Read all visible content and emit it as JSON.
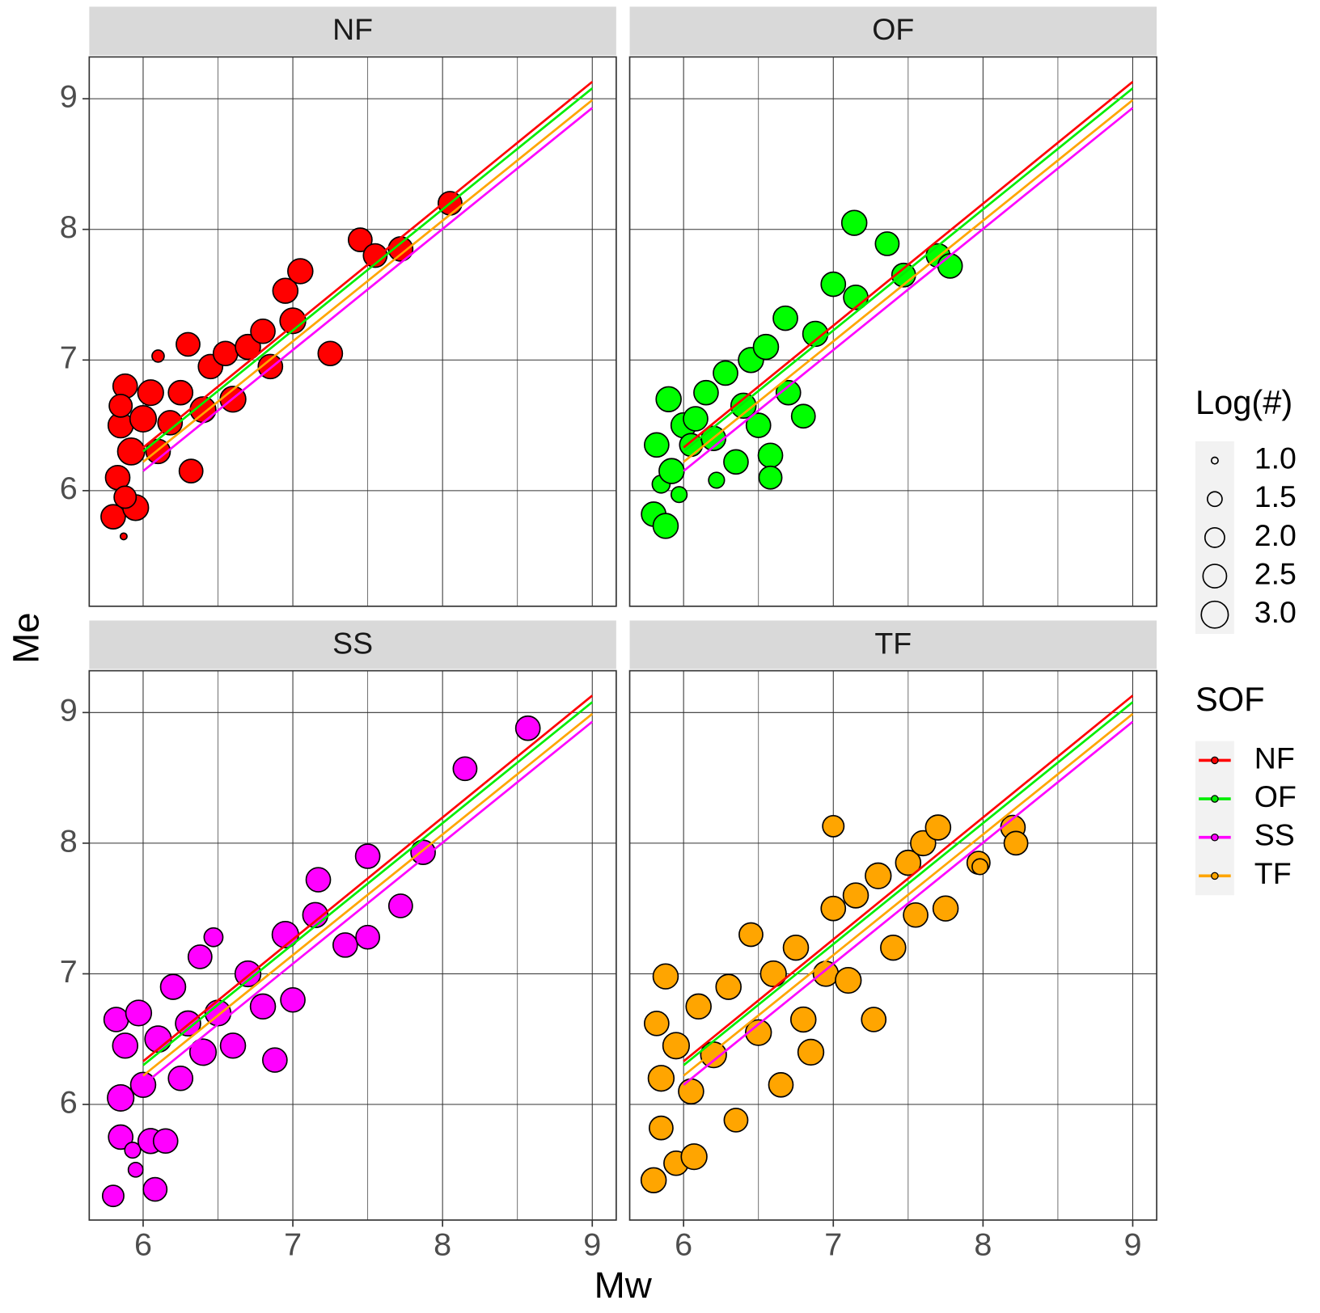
{
  "chart_data": {
    "type": "scatter",
    "xlabel": "Mw",
    "ylabel": "Me",
    "xlim": [
      5.64,
      9.16
    ],
    "ylim": [
      5.115,
      9.32
    ],
    "xticks": [
      6,
      7,
      8,
      9
    ],
    "yticks": [
      6,
      7,
      8,
      9
    ],
    "x_minor_grid": [
      6.5,
      7.5,
      8.5
    ],
    "grid": true,
    "legend_position": "right",
    "size_legend": {
      "title": "Log(#)",
      "values": [
        {
          "value": 1,
          "label": "1.0"
        },
        {
          "value": 1.5,
          "label": "1.5"
        },
        {
          "value": 2,
          "label": "2.0"
        },
        {
          "value": 2.5,
          "label": "2.5"
        },
        {
          "value": 3,
          "label": "3.0"
        }
      ]
    },
    "legend_title": "SOF",
    "lines": [
      {
        "name": "NF",
        "color": "#ff0000",
        "x": [
          6,
          9
        ],
        "y": [
          6.33,
          9.13
        ]
      },
      {
        "name": "OF",
        "color": "#00ee00",
        "x": [
          6,
          9
        ],
        "y": [
          6.3,
          9.08
        ]
      },
      {
        "name": "SS",
        "color": "#ff00ff",
        "x": [
          6,
          9
        ],
        "y": [
          6.15,
          8.93
        ]
      },
      {
        "name": "TF",
        "color": "#ffa500",
        "x": [
          6,
          9
        ],
        "y": [
          6.22,
          8.99
        ]
      }
    ],
    "facets": [
      {
        "title": "NF",
        "color": "#ff0000",
        "x": [
          5.8,
          5.83,
          5.85,
          5.88,
          5.92,
          5.95,
          5.88,
          5.85,
          6.0,
          6.05,
          6.1,
          6.18,
          6.25,
          6.3,
          6.32,
          6.4,
          6.45,
          6.55,
          6.6,
          6.7,
          6.8,
          6.85,
          6.95,
          7.0,
          7.05,
          7.25,
          7.45,
          7.72,
          8.05,
          6.1,
          5.87,
          7.55
        ],
        "y": [
          5.8,
          6.1,
          6.5,
          6.8,
          6.3,
          5.87,
          5.95,
          6.65,
          6.55,
          6.75,
          6.3,
          6.52,
          6.75,
          7.12,
          6.15,
          6.62,
          6.95,
          7.05,
          6.7,
          7.1,
          7.22,
          6.95,
          7.53,
          7.3,
          7.68,
          7.05,
          7.92,
          7.85,
          8.2,
          7.03,
          5.65,
          7.8
        ],
        "size": [
          2.6,
          2.6,
          2.7,
          2.6,
          3.0,
          2.8,
          2.3,
          2.4,
          2.9,
          2.8,
          2.6,
          2.6,
          2.6,
          2.5,
          2.5,
          2.8,
          2.6,
          2.6,
          2.8,
          2.7,
          2.6,
          2.6,
          2.7,
          2.8,
          2.7,
          2.6,
          2.5,
          2.6,
          2.5,
          1.3,
          1.0,
          2.5
        ]
      },
      {
        "title": "OF",
        "color": "#00ff00",
        "x": [
          5.8,
          5.88,
          5.82,
          5.85,
          5.92,
          5.9,
          6.0,
          5.97,
          6.05,
          6.08,
          6.15,
          6.2,
          6.28,
          6.35,
          6.4,
          6.45,
          6.5,
          6.55,
          6.58,
          6.58,
          6.68,
          6.7,
          6.8,
          6.88,
          7.0,
          7.15,
          7.14,
          7.36,
          7.47,
          7.7,
          7.78,
          6.22
        ],
        "y": [
          5.82,
          5.73,
          6.35,
          6.05,
          6.15,
          6.7,
          6.5,
          5.97,
          6.35,
          6.55,
          6.75,
          6.4,
          6.9,
          6.22,
          6.65,
          7.0,
          6.5,
          7.1,
          6.27,
          6.1,
          7.32,
          6.75,
          6.57,
          7.2,
          7.58,
          7.48,
          8.05,
          7.89,
          7.65,
          7.8,
          7.72,
          6.08
        ],
        "size": [
          2.6,
          2.7,
          2.6,
          1.8,
          2.7,
          2.7,
          2.7,
          1.6,
          2.4,
          2.6,
          2.6,
          2.6,
          2.6,
          2.6,
          2.7,
          2.7,
          2.6,
          2.7,
          2.6,
          2.4,
          2.6,
          2.6,
          2.5,
          2.7,
          2.6,
          2.6,
          2.7,
          2.5,
          2.5,
          2.5,
          2.6,
          1.6
        ]
      },
      {
        "title": "SS",
        "color": "#ff00ff",
        "x": [
          5.8,
          5.82,
          5.85,
          5.85,
          5.88,
          5.93,
          5.95,
          5.97,
          6.0,
          6.05,
          6.08,
          6.1,
          6.15,
          6.2,
          6.25,
          6.3,
          6.4,
          6.38,
          6.47,
          6.5,
          6.6,
          6.7,
          6.8,
          6.88,
          6.95,
          7.0,
          7.15,
          7.17,
          7.35,
          7.5,
          7.5,
          7.72,
          7.87,
          8.15,
          8.57
        ],
        "y": [
          5.3,
          6.65,
          5.75,
          6.05,
          6.45,
          5.65,
          5.5,
          6.7,
          6.15,
          5.72,
          5.35,
          6.5,
          5.72,
          6.9,
          6.2,
          6.62,
          6.4,
          7.13,
          7.28,
          6.7,
          6.45,
          7.0,
          6.75,
          6.34,
          7.3,
          6.8,
          7.45,
          7.72,
          7.22,
          7.28,
          7.9,
          7.52,
          7.93,
          8.57,
          8.88
        ],
        "size": [
          2.2,
          2.6,
          2.6,
          2.9,
          2.7,
          1.6,
          1.5,
          2.8,
          2.7,
          2.7,
          2.5,
          2.9,
          2.6,
          2.7,
          2.6,
          2.7,
          2.9,
          2.5,
          1.9,
          2.8,
          2.7,
          2.8,
          2.7,
          2.6,
          2.9,
          2.6,
          2.7,
          2.6,
          2.6,
          2.5,
          2.6,
          2.5,
          2.6,
          2.5,
          2.6
        ]
      },
      {
        "title": "TF",
        "color": "#ffa500",
        "x": [
          5.8,
          5.82,
          5.85,
          5.85,
          5.88,
          5.95,
          5.95,
          6.05,
          6.07,
          6.1,
          6.2,
          6.3,
          6.35,
          6.45,
          6.5,
          6.6,
          6.65,
          6.75,
          6.8,
          6.85,
          6.95,
          7.0,
          7.0,
          7.1,
          7.15,
          7.27,
          7.3,
          7.4,
          7.5,
          7.55,
          7.6,
          7.75,
          7.7,
          7.97,
          8.2,
          8.22,
          7.98
        ],
        "y": [
          5.42,
          6.62,
          6.2,
          5.82,
          6.98,
          5.55,
          6.45,
          6.1,
          5.6,
          6.75,
          6.38,
          6.9,
          5.88,
          7.3,
          6.55,
          7.0,
          6.15,
          7.2,
          6.65,
          6.4,
          7.0,
          8.13,
          7.5,
          6.95,
          7.6,
          6.65,
          7.75,
          7.2,
          7.85,
          7.45,
          8.0,
          7.5,
          8.12,
          7.85,
          8.12,
          8.0,
          7.82
        ],
        "size": [
          2.7,
          2.6,
          2.8,
          2.5,
          2.7,
          2.6,
          2.9,
          2.7,
          2.8,
          2.7,
          2.8,
          2.7,
          2.5,
          2.5,
          2.8,
          2.8,
          2.6,
          2.7,
          2.7,
          2.8,
          2.7,
          2.2,
          2.6,
          2.8,
          2.7,
          2.6,
          2.8,
          2.7,
          2.7,
          2.6,
          2.7,
          2.7,
          2.7,
          2.4,
          2.6,
          2.5,
          1.6
        ]
      }
    ]
  }
}
